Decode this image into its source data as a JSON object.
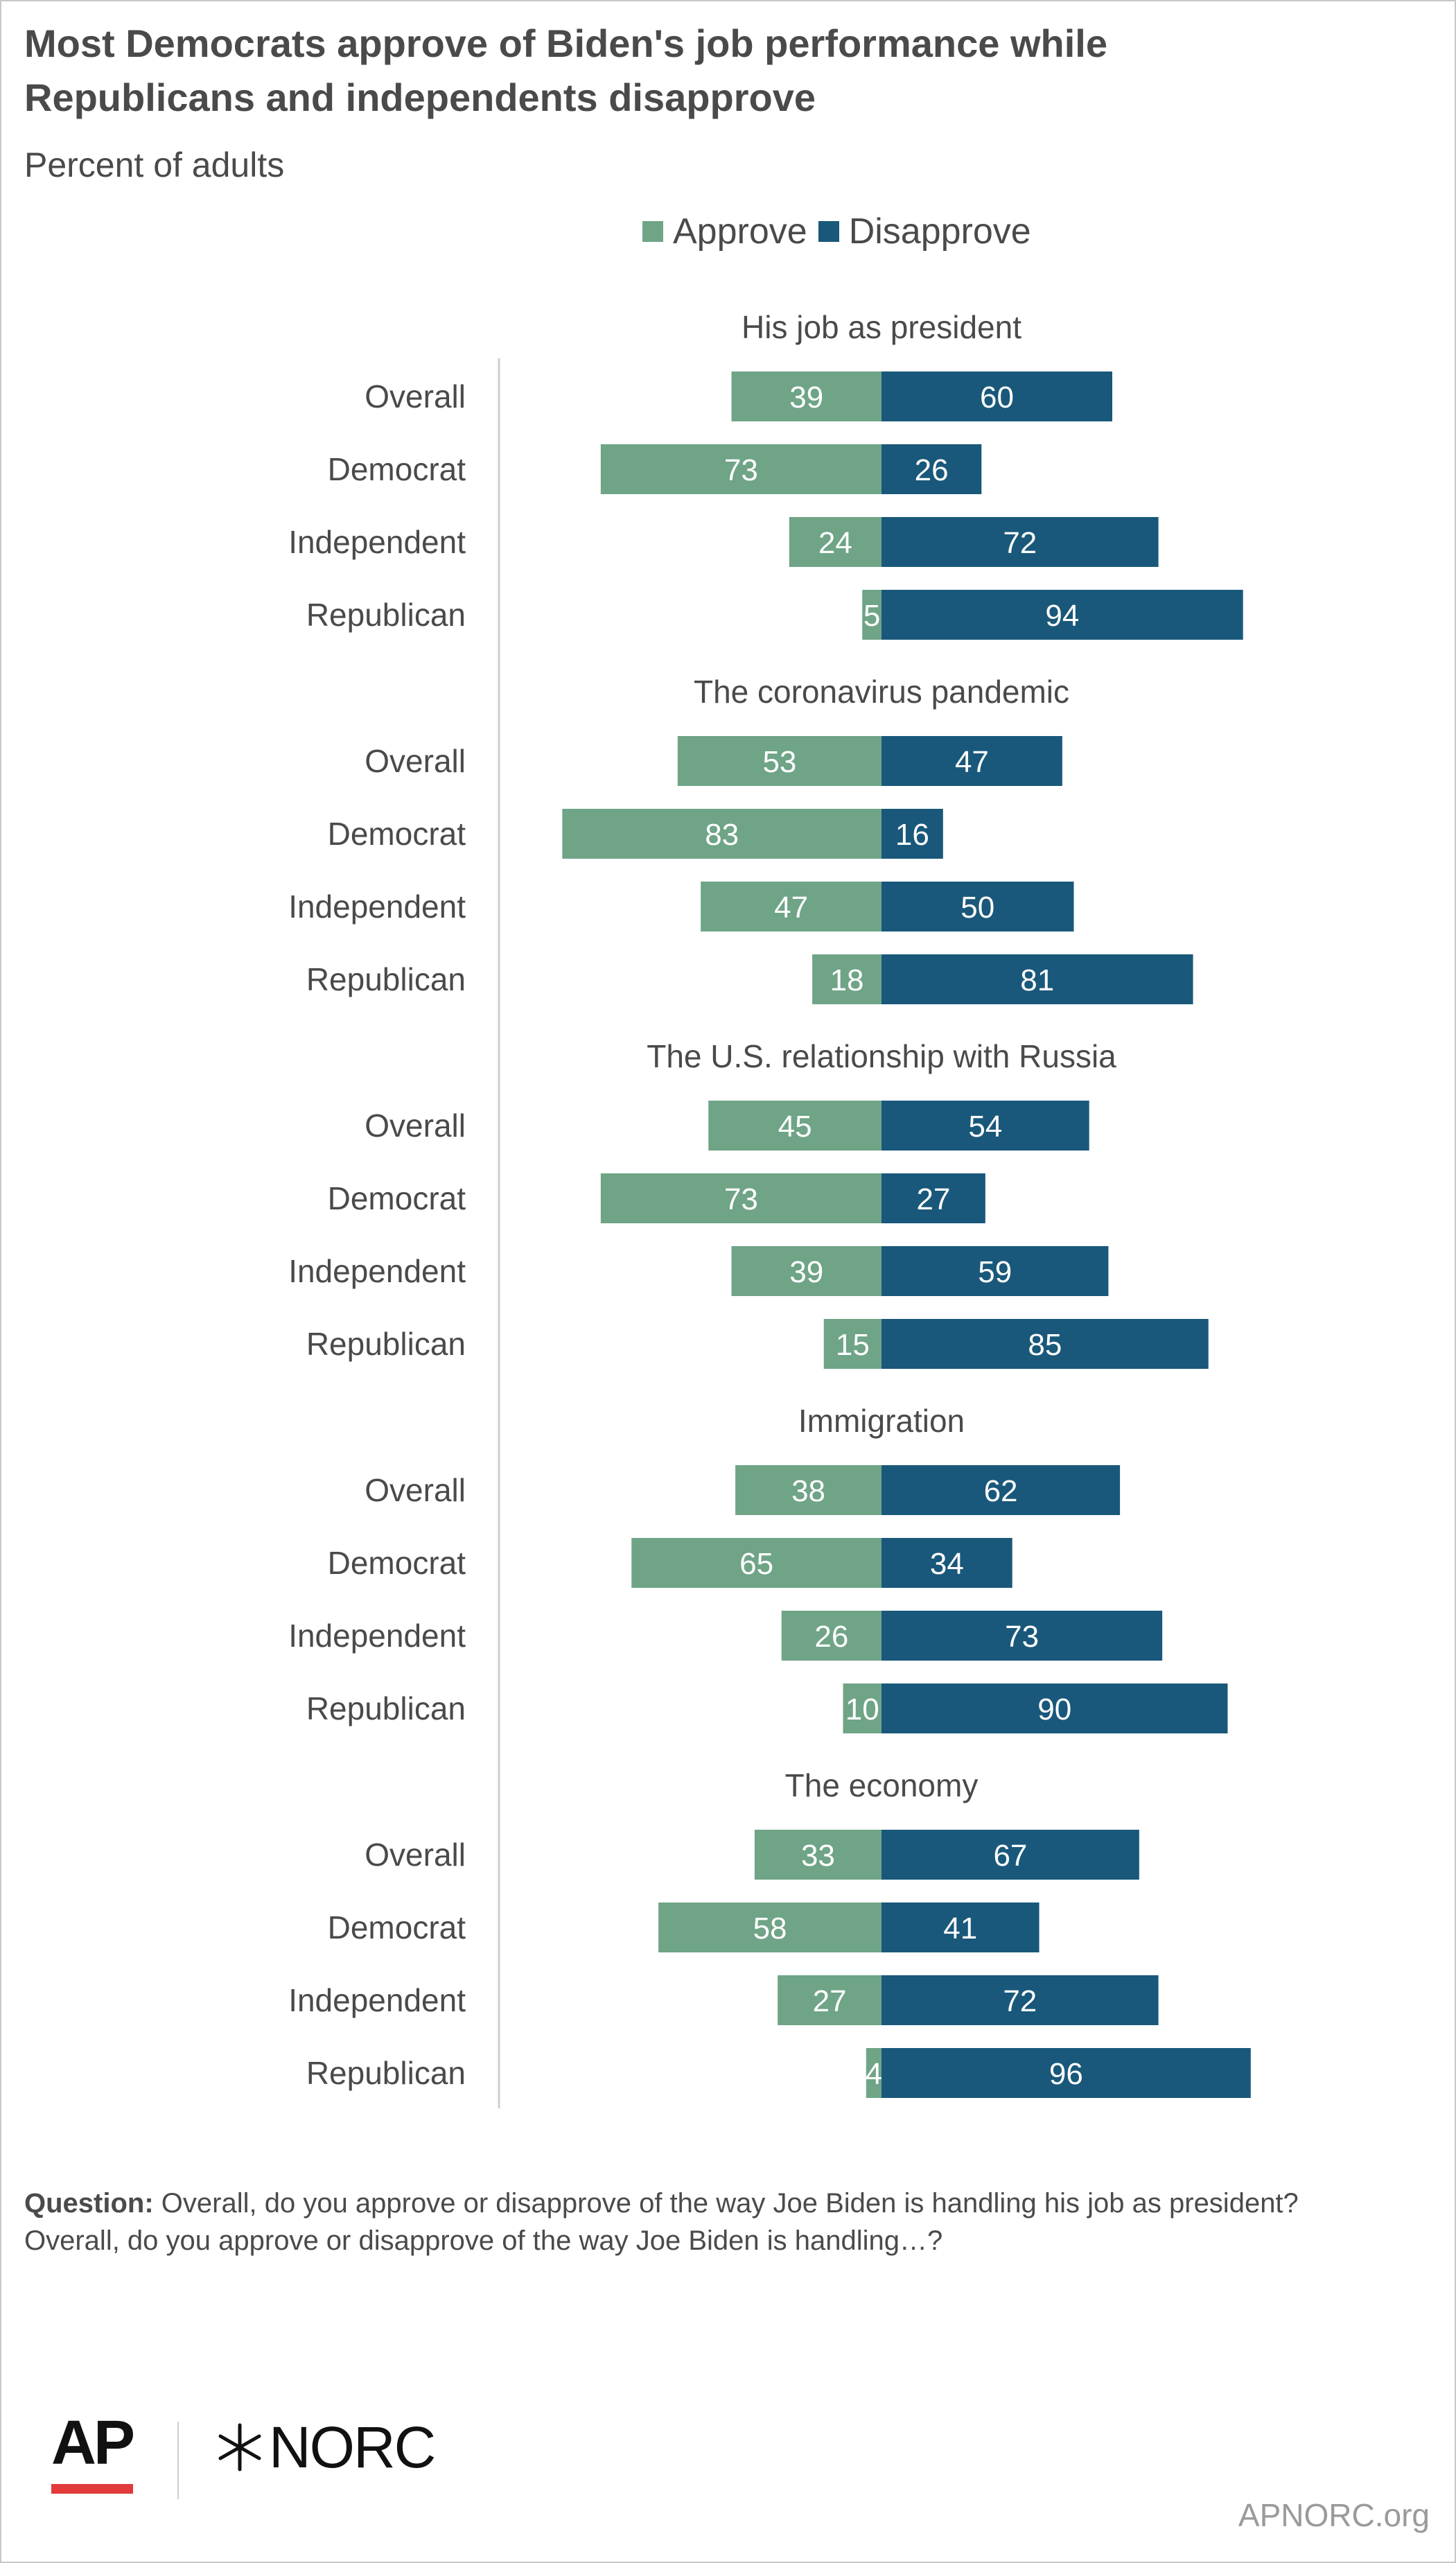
{
  "header": {
    "title_line1": "Most Democrats approve of Biden's job performance while",
    "title_line2": "Republicans and independents disapprove",
    "subtitle": "Percent of adults"
  },
  "colors": {
    "approve": "#6fa487",
    "disapprove": "#19587a",
    "text": "#4a4a4a"
  },
  "chart_data": {
    "type": "bar",
    "orientation": "horizontal-diverging",
    "legend": [
      "Approve",
      "Disapprove"
    ],
    "legend_position": "top",
    "categories": [
      "Overall",
      "Democrat",
      "Independent",
      "Republican"
    ],
    "panels": [
      {
        "title": "His job as president",
        "series": [
          {
            "name": "Approve",
            "values": [
              39,
              73,
              24,
              5
            ]
          },
          {
            "name": "Disapprove",
            "values": [
              60,
              26,
              72,
              94
            ]
          }
        ]
      },
      {
        "title": "The coronavirus pandemic",
        "series": [
          {
            "name": "Approve",
            "values": [
              53,
              83,
              47,
              18
            ]
          },
          {
            "name": "Disapprove",
            "values": [
              47,
              16,
              50,
              81
            ]
          }
        ]
      },
      {
        "title": "The U.S. relationship with Russia",
        "series": [
          {
            "name": "Approve",
            "values": [
              45,
              73,
              39,
              15
            ]
          },
          {
            "name": "Disapprove",
            "values": [
              54,
              27,
              59,
              85
            ]
          }
        ]
      },
      {
        "title": "Immigration",
        "series": [
          {
            "name": "Approve",
            "values": [
              38,
              65,
              26,
              10
            ]
          },
          {
            "name": "Disapprove",
            "values": [
              62,
              34,
              73,
              90
            ]
          }
        ]
      },
      {
        "title": "The economy",
        "series": [
          {
            "name": "Approve",
            "values": [
              33,
              58,
              27,
              4
            ]
          },
          {
            "name": "Disapprove",
            "values": [
              67,
              41,
              72,
              96
            ]
          }
        ]
      }
    ]
  },
  "footer": {
    "question_label": "Question:",
    "question_text": "Overall, do you approve or disapprove of the way Joe Biden is handling his job as president?",
    "question_line2": "Overall, do you approve or disapprove of the way Joe Biden is handling…?",
    "ap_logo": "AP",
    "norc_logo": "NORC",
    "website": "APNORC.org"
  }
}
